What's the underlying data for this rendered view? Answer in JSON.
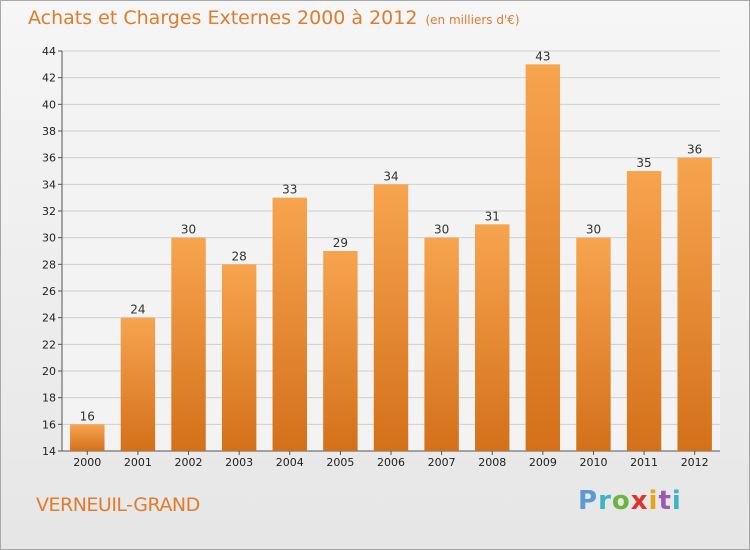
{
  "title": "Achats et Charges Externes 2000 à 2012",
  "unit_note": "(en milliers d'€)",
  "commune": "VERNEUIL-GRAND",
  "logo": {
    "letters": [
      "P",
      "r",
      "o",
      "x",
      "i",
      "t",
      "i"
    ],
    "colors": [
      "#5b9bd5",
      "#3cb4c8",
      "#6cb33f",
      "#e0322d",
      "#e8a317",
      "#9b59b6",
      "#3cb4c8"
    ]
  },
  "colors": {
    "accent": "#e07c2c",
    "bar_top": "#f7a44f",
    "bar_bottom": "#d4701a"
  },
  "chart_data": {
    "type": "bar",
    "categories": [
      "2000",
      "2001",
      "2002",
      "2003",
      "2004",
      "2005",
      "2006",
      "2007",
      "2008",
      "2009",
      "2010",
      "2011",
      "2012"
    ],
    "values": [
      16,
      24,
      30,
      28,
      33,
      29,
      34,
      30,
      31,
      43,
      30,
      35,
      36
    ],
    "title": "Achats et Charges Externes 2000 à 2012",
    "ylim": [
      14,
      44
    ],
    "yticks": [
      14,
      16,
      18,
      20,
      22,
      24,
      26,
      28,
      30,
      32,
      34,
      36,
      38,
      40,
      42,
      44
    ],
    "grid": true,
    "data_labels": true
  }
}
